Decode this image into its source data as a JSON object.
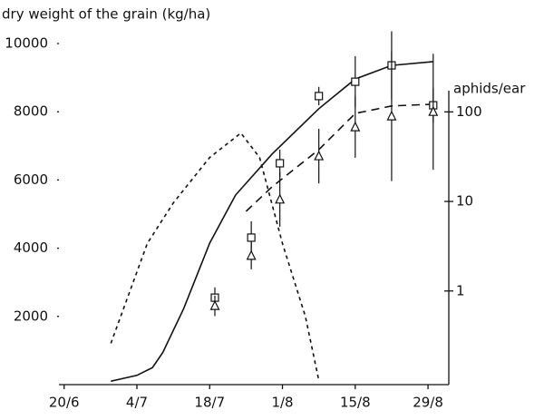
{
  "chart_data": {
    "type": "line",
    "title": "dry weight of the grain (kg/ha)",
    "y2label": "aphids/ear",
    "xlim": [
      170,
      245
    ],
    "xticks": [
      {
        "value": 171,
        "label": "20/6"
      },
      {
        "value": 185,
        "label": "4/7"
      },
      {
        "value": 199,
        "label": "18/7"
      },
      {
        "value": 213,
        "label": "1/8"
      },
      {
        "value": 227,
        "label": "15/8"
      },
      {
        "value": 241,
        "label": "29/8"
      }
    ],
    "ylim": [
      0,
      10000
    ],
    "yticks": [
      2000,
      4000,
      6000,
      8000,
      10000
    ],
    "y2lim": [
      0.09,
      580
    ],
    "y2ticks": [
      1,
      10,
      100
    ],
    "y2log": true,
    "color": "#111111",
    "series": [
      {
        "x": [
          180,
          185,
          188,
          190,
          194,
          199,
          204,
          211,
          220,
          227,
          234,
          242
        ],
        "values": [
          100,
          270,
          500,
          950,
          2230,
          4150,
          5560,
          6760,
          8090,
          8960,
          9360,
          9470
        ],
        "dash": "none"
      },
      {
        "x": [
          206,
          211,
          220,
          227,
          234,
          242
        ],
        "values": [
          5080,
          5800,
          6890,
          7950,
          8170,
          8220
        ],
        "dash": "9 6"
      },
      {
        "x": [
          180,
          187,
          192,
          199,
          205,
          208.6,
          213,
          217.4,
          220
        ],
        "values": [
          0.26,
          3.4,
          9.6,
          31,
          58,
          31,
          3.4,
          0.52,
          0.1
        ],
        "dash": "4 4",
        "axis": "y2"
      },
      {
        "x": [
          200,
          207,
          212.5,
          220,
          227,
          234,
          242
        ],
        "values": [
          2550,
          4310,
          6490,
          8460,
          8880,
          9360,
          8190
        ],
        "errors": [
          300,
          480,
          400,
          270,
          750,
          1000,
          500
        ],
        "marker": "square"
      },
      {
        "x": [
          200,
          207,
          212.5,
          220,
          227,
          234,
          242
        ],
        "values": [
          2310,
          3780,
          5430,
          6700,
          7550,
          7870,
          8000
        ],
        "errors": [
          300,
          400,
          800,
          800,
          900,
          1900,
          1700
        ],
        "marker": "triangle"
      }
    ]
  }
}
